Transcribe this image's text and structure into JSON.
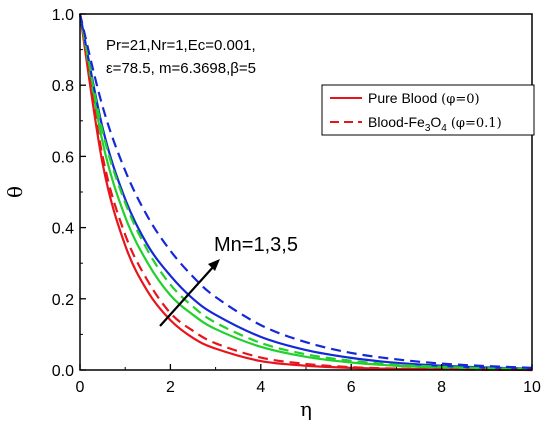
{
  "chart_data": {
    "type": "line",
    "xlabel": "η",
    "ylabel": "θ",
    "xlim": [
      0,
      10
    ],
    "ylim": [
      0,
      1.0
    ],
    "x_ticks": [
      "0",
      "2",
      "4",
      "6",
      "8",
      "10"
    ],
    "y_ticks": [
      "0.0",
      "0.2",
      "0.4",
      "0.6",
      "0.8",
      "1.0"
    ],
    "parameters": {
      "line1": "Pr=21,Nr=1,Ec=0.001,",
      "line2": "ε=78.5, m=6.3698,β=5"
    },
    "legend": {
      "placement": "top-right",
      "entries": [
        {
          "name": "Pure Blood",
          "greek": "(φ=0)",
          "style": "solid",
          "color": "#e8141c"
        },
        {
          "name": "Blood-Fe",
          "sub": "3",
          "name2": "O",
          "sub2": "4",
          "greek": "(φ=0.1)",
          "style": "dashed",
          "color": "#e8141c"
        }
      ]
    },
    "annotation": {
      "text": "Mn=1,3,5"
    },
    "x": [
      0,
      0.5,
      1,
      1.5,
      2,
      2.5,
      3,
      4,
      5,
      6,
      7,
      8,
      9,
      10
    ],
    "series": [
      {
        "color": "#e8141c",
        "style": "solid",
        "values": [
          1.0,
          0.58,
          0.35,
          0.22,
          0.14,
          0.09,
          0.06,
          0.025,
          0.012,
          0.006,
          0.003,
          0.002,
          0.001,
          0.0
        ]
      },
      {
        "color": "#22d02c",
        "style": "solid",
        "values": [
          1.0,
          0.64,
          0.43,
          0.3,
          0.21,
          0.155,
          0.115,
          0.065,
          0.037,
          0.021,
          0.012,
          0.007,
          0.004,
          0.002
        ]
      },
      {
        "color": "#1428d8",
        "style": "solid",
        "values": [
          1.0,
          0.68,
          0.48,
          0.35,
          0.265,
          0.2,
          0.155,
          0.093,
          0.056,
          0.034,
          0.02,
          0.012,
          0.007,
          0.004
        ]
      },
      {
        "color": "#e8141c",
        "style": "dashed",
        "values": [
          1.0,
          0.6,
          0.38,
          0.25,
          0.16,
          0.11,
          0.075,
          0.035,
          0.017,
          0.008,
          0.004,
          0.002,
          0.001,
          0.0
        ]
      },
      {
        "color": "#22d02c",
        "style": "dashed",
        "values": [
          1.0,
          0.67,
          0.47,
          0.335,
          0.24,
          0.178,
          0.133,
          0.076,
          0.044,
          0.026,
          0.015,
          0.009,
          0.005,
          0.003
        ]
      },
      {
        "color": "#1428d8",
        "style": "dashed",
        "values": [
          1.0,
          0.74,
          0.56,
          0.43,
          0.335,
          0.262,
          0.205,
          0.126,
          0.078,
          0.048,
          0.03,
          0.018,
          0.011,
          0.006
        ]
      }
    ]
  }
}
